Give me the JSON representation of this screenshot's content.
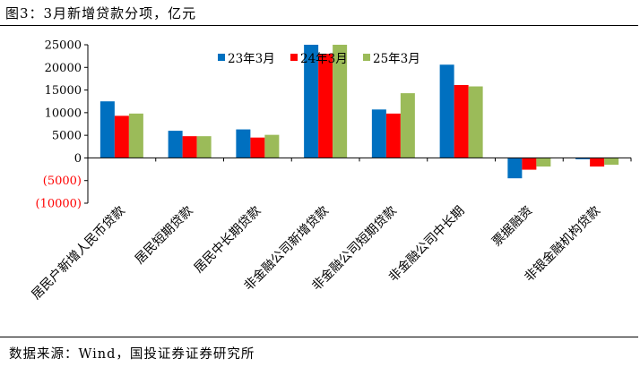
{
  "title": "图3：3月新增贷款分项，亿元",
  "source": "数据来源：Wind，国投证券证券研究所",
  "chart_data": {
    "type": "bar",
    "categories": [
      "居民户新增人民币贷款",
      "居民短期贷款",
      "居民中长期贷款",
      "非金融公司新增贷款",
      "非金融公司短期贷款",
      "非金融公司中长期",
      "票据融资",
      "非银金融机构贷款"
    ],
    "series": [
      {
        "name": "23年3月",
        "color": "#0070C0",
        "values": [
          12500,
          6000,
          6300,
          25000,
          10700,
          20600,
          -4500,
          -300
        ]
      },
      {
        "name": "24年3月",
        "color": "#FF0000",
        "values": [
          9300,
          4800,
          4500,
          23000,
          9800,
          16100,
          -2600,
          -1900
        ]
      },
      {
        "name": "25年3月",
        "color": "#9BBB59",
        "values": [
          9800,
          4800,
          5100,
          25000,
          14300,
          15800,
          -1900,
          -1500
        ]
      }
    ],
    "yticks": [
      "(10000)",
      "(5000)",
      "0",
      "5000",
      "10000",
      "15000",
      "20000",
      "25000"
    ],
    "ytick_values": [
      -10000,
      -5000,
      0,
      5000,
      10000,
      15000,
      20000,
      25000
    ],
    "ylim": [
      -10000,
      25000
    ],
    "negative_tick_color": "#FF0000",
    "legend_position": "top"
  }
}
